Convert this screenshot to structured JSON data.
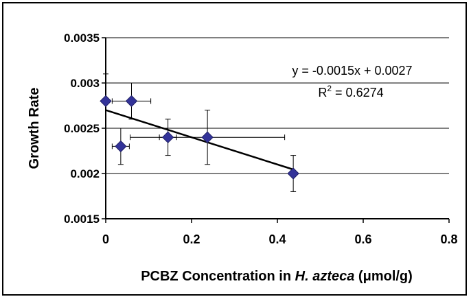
{
  "chart_data": {
    "type": "scatter",
    "xlabel_main": "PCBZ Concentration in ",
    "xlabel_italic": "H. azteca",
    "xlabel_unit": " (μmol/g)",
    "ylabel": "Growth Rate",
    "xlim": [
      0,
      0.8
    ],
    "ylim": [
      0.0015,
      0.0035
    ],
    "x_ticks": [
      0,
      0.2,
      0.4,
      0.6,
      0.8
    ],
    "x_tick_labels": [
      "0",
      "0.2",
      "0.4",
      "0.6",
      "0.8"
    ],
    "y_ticks": [
      0.0015,
      0.002,
      0.0025,
      0.003,
      0.0035
    ],
    "y_tick_labels": [
      "0.0015",
      "0.002",
      "0.0025",
      "0.003",
      "0.0035"
    ],
    "grid": "horizontal",
    "marker": "diamond",
    "marker_color": "#333399",
    "points": [
      {
        "x": 0.0,
        "y": 0.0028,
        "y_err": 0.0003,
        "x_err": 0.0
      },
      {
        "x": 0.035,
        "y": 0.0023,
        "y_err": 0.0002,
        "x_err": 0.02
      },
      {
        "x": 0.06,
        "y": 0.0028,
        "y_err": 0.0002,
        "x_err": 0.045
      },
      {
        "x": 0.145,
        "y": 0.0024,
        "y_err": 0.0002,
        "x_err": 0.02
      },
      {
        "x": 0.237,
        "y": 0.0024,
        "y_err": 0.0003,
        "x_err": 0.18
      },
      {
        "x": 0.437,
        "y": 0.002,
        "y_err": 0.0002,
        "x_err": 0.0
      }
    ],
    "trendline": {
      "slope": -0.0015,
      "intercept": 0.0027,
      "x_start": 0.0,
      "x_end": 0.437
    },
    "equation_text": "y = -0.0015x + 0.0027",
    "r2_label": "R",
    "r2_sup": "2",
    "r2_value": " = 0.6274"
  }
}
